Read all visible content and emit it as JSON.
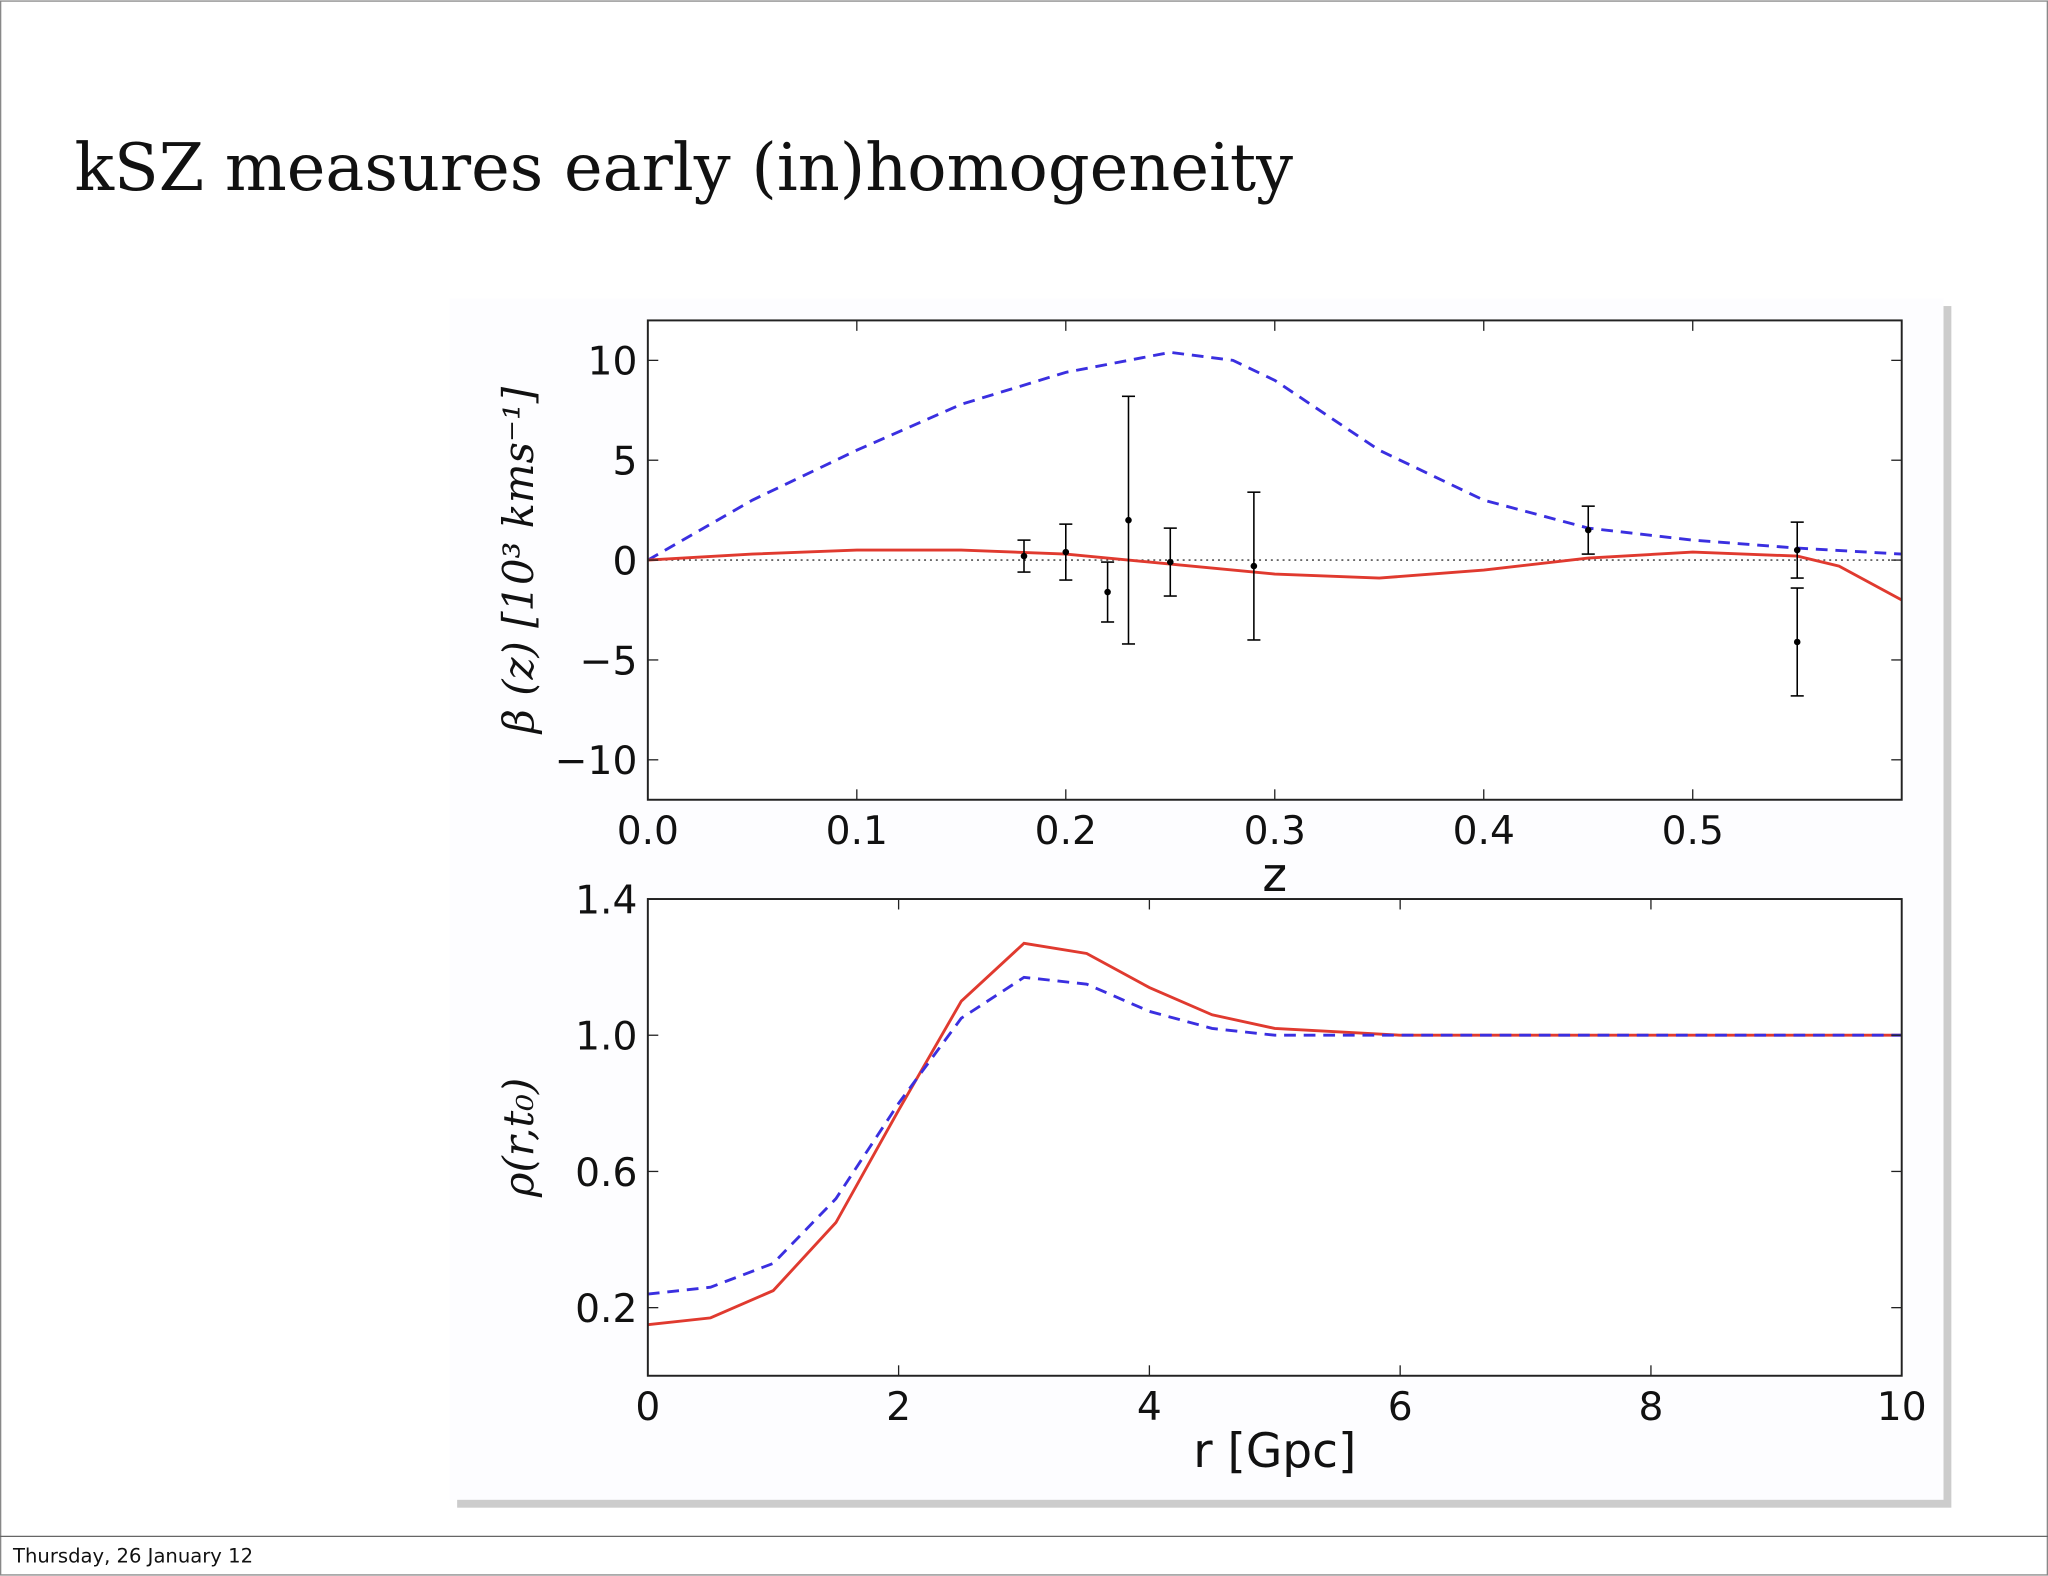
{
  "title": "kSZ measures early (in)homogeneity",
  "footer": "Thursday, 26 January 12",
  "chart_data": [
    {
      "type": "line",
      "ylabel": "β (z) [10³ kms⁻¹]",
      "xlabel": "z",
      "xlim": [
        0,
        0.6
      ],
      "ylim": [
        -12,
        12
      ],
      "xticks": [
        {
          "value": 0,
          "label": "0.0"
        },
        0.1,
        0.2,
        0.3,
        0.4,
        0.5
      ],
      "yticks": [
        10,
        5,
        0,
        {
          "value": -5,
          "label": "−5"
        },
        {
          "value": -10,
          "label": "−10"
        }
      ],
      "series": [
        {
          "color": "#3a2fe0",
          "dash": true,
          "x": [
            0,
            0.05,
            0.1,
            0.15,
            0.2,
            0.25,
            0.28,
            0.3,
            0.35,
            0.4,
            0.45,
            0.5,
            0.55,
            0.6
          ],
          "values": [
            0,
            3,
            5.5,
            7.8,
            9.4,
            10.4,
            10,
            9,
            5.5,
            3,
            1.6,
            1,
            0.6,
            0.3
          ]
        },
        {
          "color": "#e03a2f",
          "dash": false,
          "x": [
            0,
            0.05,
            0.1,
            0.15,
            0.2,
            0.25,
            0.3,
            0.35,
            0.4,
            0.45,
            0.5,
            0.55,
            0.57,
            0.6
          ],
          "values": [
            0,
            0.3,
            0.5,
            0.5,
            0.3,
            -0.2,
            -0.7,
            -0.9,
            -0.5,
            0.1,
            0.4,
            0.2,
            -0.3,
            -2
          ]
        },
        {
          "color": "#000000",
          "type": "errorbar",
          "x": [
            0.18,
            0.2,
            0.22,
            0.23,
            0.25,
            0.29,
            0.45,
            0.55,
            0.55
          ],
          "values": [
            0.2,
            0.4,
            -1.6,
            2.0,
            -0.1,
            -0.3,
            1.5,
            0.5,
            -4.1
          ],
          "errors": [
            0.8,
            1.4,
            1.5,
            6.2,
            1.7,
            3.7,
            1.2,
            1.4,
            2.7
          ]
        }
      ]
    },
    {
      "type": "line",
      "ylabel": "ρ(r,t₀)",
      "xlabel": "r [Gpc]",
      "xlim": [
        0,
        10
      ],
      "ylim": [
        0,
        1.4
      ],
      "xticks": [
        0,
        2,
        4,
        6,
        8,
        10
      ],
      "yticks": [
        0.2,
        0.6,
        {
          "value": 1.0,
          "label": "1.0"
        },
        1.4
      ],
      "series": [
        {
          "color": "#e03a2f",
          "dash": false,
          "x": [
            0,
            0.5,
            1,
            1.5,
            2,
            2.5,
            3,
            3.5,
            4,
            4.5,
            5,
            6,
            8,
            10
          ],
          "values": [
            0.15,
            0.17,
            0.25,
            0.45,
            0.78,
            1.1,
            1.27,
            1.24,
            1.14,
            1.06,
            1.02,
            1.0,
            1.0,
            1.0
          ]
        },
        {
          "color": "#3a2fe0",
          "dash": true,
          "x": [
            0,
            0.5,
            1,
            1.5,
            2,
            2.5,
            3,
            3.5,
            4,
            4.5,
            5,
            6,
            10
          ],
          "values": [
            0.24,
            0.26,
            0.33,
            0.52,
            0.8,
            1.05,
            1.17,
            1.15,
            1.07,
            1.02,
            1.0,
            1.0,
            1.0
          ]
        }
      ]
    }
  ]
}
